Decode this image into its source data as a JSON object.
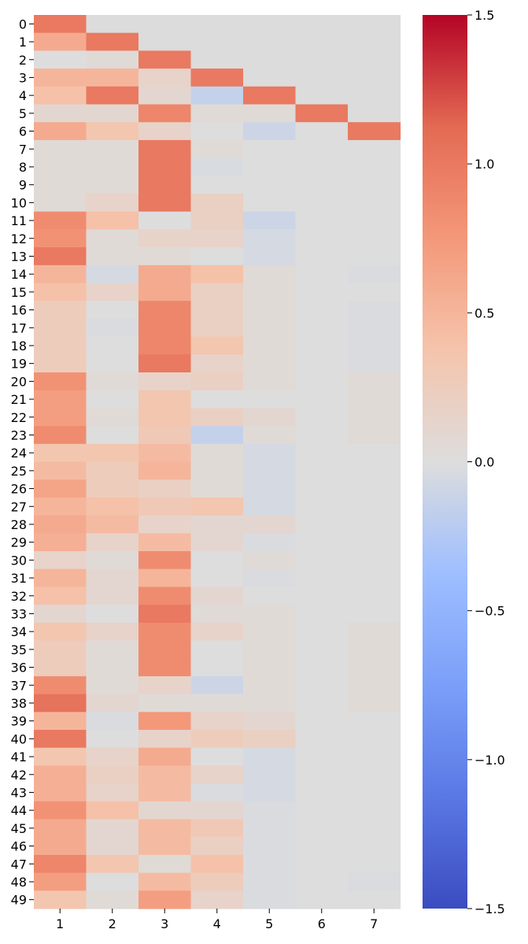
{
  "chart_data": {
    "type": "heatmap",
    "title": "",
    "xlabel": "",
    "ylabel": "",
    "x_categories": [
      "1",
      "2",
      "3",
      "4",
      "5",
      "6",
      "7"
    ],
    "y_categories": [
      "0",
      "1",
      "2",
      "3",
      "4",
      "5",
      "6",
      "7",
      "8",
      "9",
      "10",
      "11",
      "12",
      "13",
      "14",
      "15",
      "16",
      "17",
      "18",
      "19",
      "20",
      "21",
      "22",
      "23",
      "24",
      "25",
      "26",
      "27",
      "28",
      "29",
      "30",
      "31",
      "32",
      "33",
      "34",
      "35",
      "36",
      "37",
      "38",
      "39",
      "40",
      "41",
      "42",
      "43",
      "44",
      "45",
      "46",
      "47",
      "48",
      "49"
    ],
    "values": [
      [
        1.0,
        null,
        null,
        null,
        null,
        null,
        null
      ],
      [
        0.6,
        1.0,
        null,
        null,
        null,
        null,
        null
      ],
      [
        0.0,
        0.05,
        1.0,
        null,
        null,
        null,
        null
      ],
      [
        0.5,
        0.5,
        0.15,
        1.0,
        null,
        null,
        null
      ],
      [
        0.4,
        1.0,
        0.1,
        -0.15,
        1.0,
        null,
        null
      ],
      [
        0.1,
        0.1,
        0.9,
        0.05,
        0.05,
        1.0,
        null
      ],
      [
        0.6,
        0.35,
        0.15,
        0.0,
        -0.1,
        0.0,
        1.0
      ],
      [
        0.05,
        0.05,
        1.0,
        0.05,
        0.0,
        0.0,
        0.0
      ],
      [
        0.05,
        0.05,
        1.0,
        -0.03,
        0.0,
        0.0,
        0.0
      ],
      [
        0.05,
        0.05,
        1.0,
        0.0,
        0.0,
        0.0,
        0.0
      ],
      [
        0.05,
        0.15,
        1.0,
        0.2,
        0.0,
        0.0,
        0.0
      ],
      [
        0.85,
        0.4,
        0.0,
        0.2,
        -0.1,
        0.0,
        0.0
      ],
      [
        0.8,
        0.05,
        0.15,
        0.15,
        -0.05,
        0.0,
        0.0
      ],
      [
        1.0,
        0.05,
        0.05,
        0.0,
        -0.05,
        0.0,
        0.0
      ],
      [
        0.5,
        -0.05,
        0.6,
        0.4,
        0.05,
        0.0,
        -0.02
      ],
      [
        0.4,
        0.15,
        0.6,
        0.2,
        0.05,
        0.0,
        0.0
      ],
      [
        0.25,
        0.0,
        0.9,
        0.2,
        0.05,
        0.0,
        -0.02
      ],
      [
        0.25,
        -0.02,
        0.9,
        0.2,
        0.05,
        0.0,
        -0.02
      ],
      [
        0.25,
        0.0,
        0.9,
        0.35,
        0.05,
        0.0,
        -0.02
      ],
      [
        0.25,
        0.0,
        1.0,
        0.15,
        0.05,
        0.0,
        -0.02
      ],
      [
        0.8,
        0.05,
        0.15,
        0.2,
        0.05,
        0.0,
        0.05
      ],
      [
        0.7,
        0.0,
        0.35,
        0.0,
        0.0,
        0.0,
        0.05
      ],
      [
        0.7,
        0.05,
        0.35,
        0.2,
        0.1,
        0.0,
        0.05
      ],
      [
        0.85,
        0.0,
        0.3,
        -0.15,
        0.05,
        0.0,
        0.05
      ],
      [
        0.35,
        0.35,
        0.45,
        0.05,
        -0.05,
        0.0,
        0.0
      ],
      [
        0.45,
        0.25,
        0.5,
        0.05,
        -0.05,
        0.0,
        0.0
      ],
      [
        0.65,
        0.25,
        0.2,
        0.05,
        -0.05,
        0.0,
        0.0
      ],
      [
        0.5,
        0.4,
        0.3,
        0.35,
        -0.05,
        0.0,
        0.0
      ],
      [
        0.6,
        0.45,
        0.15,
        0.1,
        0.1,
        0.0,
        0.0
      ],
      [
        0.55,
        0.15,
        0.45,
        0.1,
        -0.02,
        0.0,
        0.0
      ],
      [
        0.15,
        0.05,
        0.85,
        0.0,
        0.05,
        0.0,
        0.0
      ],
      [
        0.5,
        0.1,
        0.5,
        0.0,
        -0.02,
        0.0,
        0.0
      ],
      [
        0.4,
        0.1,
        0.85,
        0.1,
        0.0,
        0.0,
        0.0
      ],
      [
        0.1,
        0.0,
        1.0,
        0.05,
        0.05,
        0.0,
        0.0
      ],
      [
        0.35,
        0.15,
        0.85,
        0.15,
        0.05,
        0.0,
        0.05
      ],
      [
        0.25,
        0.05,
        0.85,
        0.0,
        0.05,
        0.0,
        0.05
      ],
      [
        0.25,
        0.05,
        0.85,
        0.0,
        0.05,
        0.0,
        0.05
      ],
      [
        0.85,
        0.05,
        0.15,
        -0.1,
        0.05,
        0.0,
        0.05
      ],
      [
        1.05,
        0.1,
        0.05,
        0.05,
        0.05,
        0.0,
        0.05
      ],
      [
        0.5,
        -0.02,
        0.75,
        0.15,
        0.1,
        0.0,
        0.0
      ],
      [
        1.0,
        0.0,
        0.15,
        0.25,
        0.2,
        0.0,
        0.0
      ],
      [
        0.35,
        0.15,
        0.6,
        0.0,
        -0.05,
        0.0,
        0.0
      ],
      [
        0.55,
        0.2,
        0.45,
        0.15,
        -0.05,
        0.0,
        0.0
      ],
      [
        0.55,
        0.15,
        0.45,
        -0.02,
        -0.05,
        0.0,
        0.0
      ],
      [
        0.8,
        0.4,
        0.1,
        0.1,
        -0.02,
        0.0,
        0.0
      ],
      [
        0.6,
        0.1,
        0.45,
        0.3,
        -0.02,
        0.0,
        0.0
      ],
      [
        0.6,
        0.1,
        0.45,
        0.2,
        -0.02,
        0.0,
        0.0
      ],
      [
        0.9,
        0.35,
        0.05,
        0.4,
        -0.02,
        0.0,
        0.0
      ],
      [
        0.7,
        0.0,
        0.45,
        0.25,
        -0.02,
        0.0,
        -0.02
      ],
      [
        0.35,
        0.05,
        0.7,
        0.15,
        -0.02,
        0.0,
        0.0
      ]
    ],
    "mask_color": "#dcdcdc",
    "colormap": "coolwarm",
    "vmin": -1.5,
    "vmax": 1.5,
    "colorbar_ticks": [
      "−1.5",
      "−1.0",
      "−0.5",
      "0.0",
      "0.5",
      "1.0",
      "1.5"
    ],
    "colorbar_tick_values": [
      -1.5,
      -1.0,
      -0.5,
      0.0,
      0.5,
      1.0,
      1.5
    ],
    "grid": false
  }
}
